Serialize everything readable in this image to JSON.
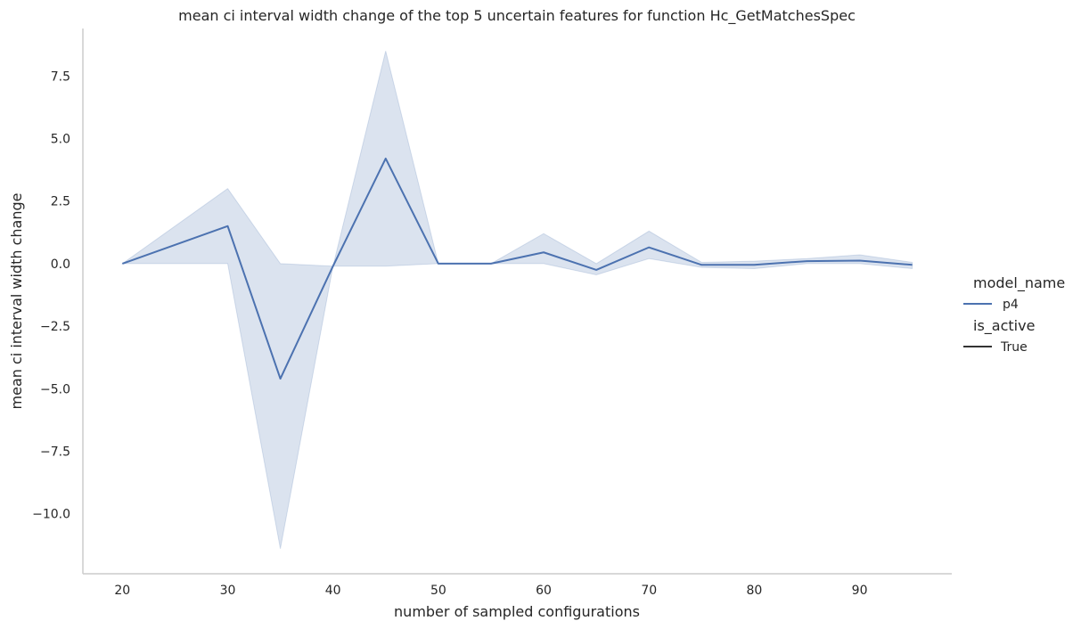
{
  "chart_data": {
    "type": "line",
    "title": "mean ci interval width change of the top 5 uncertain features for function Hc_GetMatchesSpec",
    "xlabel": "number of sampled configurations",
    "ylabel": "mean ci interval width change",
    "xlim": [
      16.25,
      98.75
    ],
    "ylim": [
      -12.4,
      9.4
    ],
    "x_ticks": [
      20,
      30,
      40,
      50,
      60,
      70,
      80,
      90
    ],
    "x_tick_labels": [
      "20",
      "30",
      "40",
      "50",
      "60",
      "70",
      "80",
      "90"
    ],
    "y_ticks": [
      -10,
      -7.5,
      -5,
      -2.5,
      0,
      2.5,
      5,
      7.5
    ],
    "y_tick_labels": [
      "−10.0",
      "−7.5",
      "−5.0",
      "−2.5",
      "0.0",
      "2.5",
      "5.0",
      "7.5"
    ],
    "grid": false,
    "legend_placement": "right",
    "legend": {
      "hue_title": "model_name",
      "hue_entries": [
        "p4"
      ],
      "style_title": "is_active",
      "style_entries": [
        "True"
      ]
    },
    "colors": {
      "line": "#4c72b0",
      "band": "#4c72b0",
      "axis": "#cccccc",
      "style_swatch": "#333333"
    },
    "series": [
      {
        "name": "p4",
        "x": [
          20,
          30,
          35,
          40,
          45,
          50,
          55,
          60,
          65,
          70,
          75,
          80,
          85,
          90,
          95
        ],
        "y": [
          0.0,
          1.5,
          -4.6,
          -0.1,
          4.2,
          0.0,
          0.0,
          0.45,
          -0.25,
          0.65,
          -0.05,
          -0.05,
          0.1,
          0.12,
          -0.05
        ],
        "ci_low": [
          0.0,
          0.0,
          -11.4,
          -0.1,
          -0.1,
          0.0,
          0.0,
          0.0,
          -0.45,
          0.2,
          -0.15,
          -0.2,
          0.0,
          0.0,
          -0.2
        ],
        "ci_high": [
          0.0,
          3.0,
          0.0,
          -0.1,
          8.5,
          0.0,
          0.0,
          1.2,
          0.0,
          1.3,
          0.05,
          0.1,
          0.2,
          0.35,
          0.05
        ]
      }
    ]
  }
}
